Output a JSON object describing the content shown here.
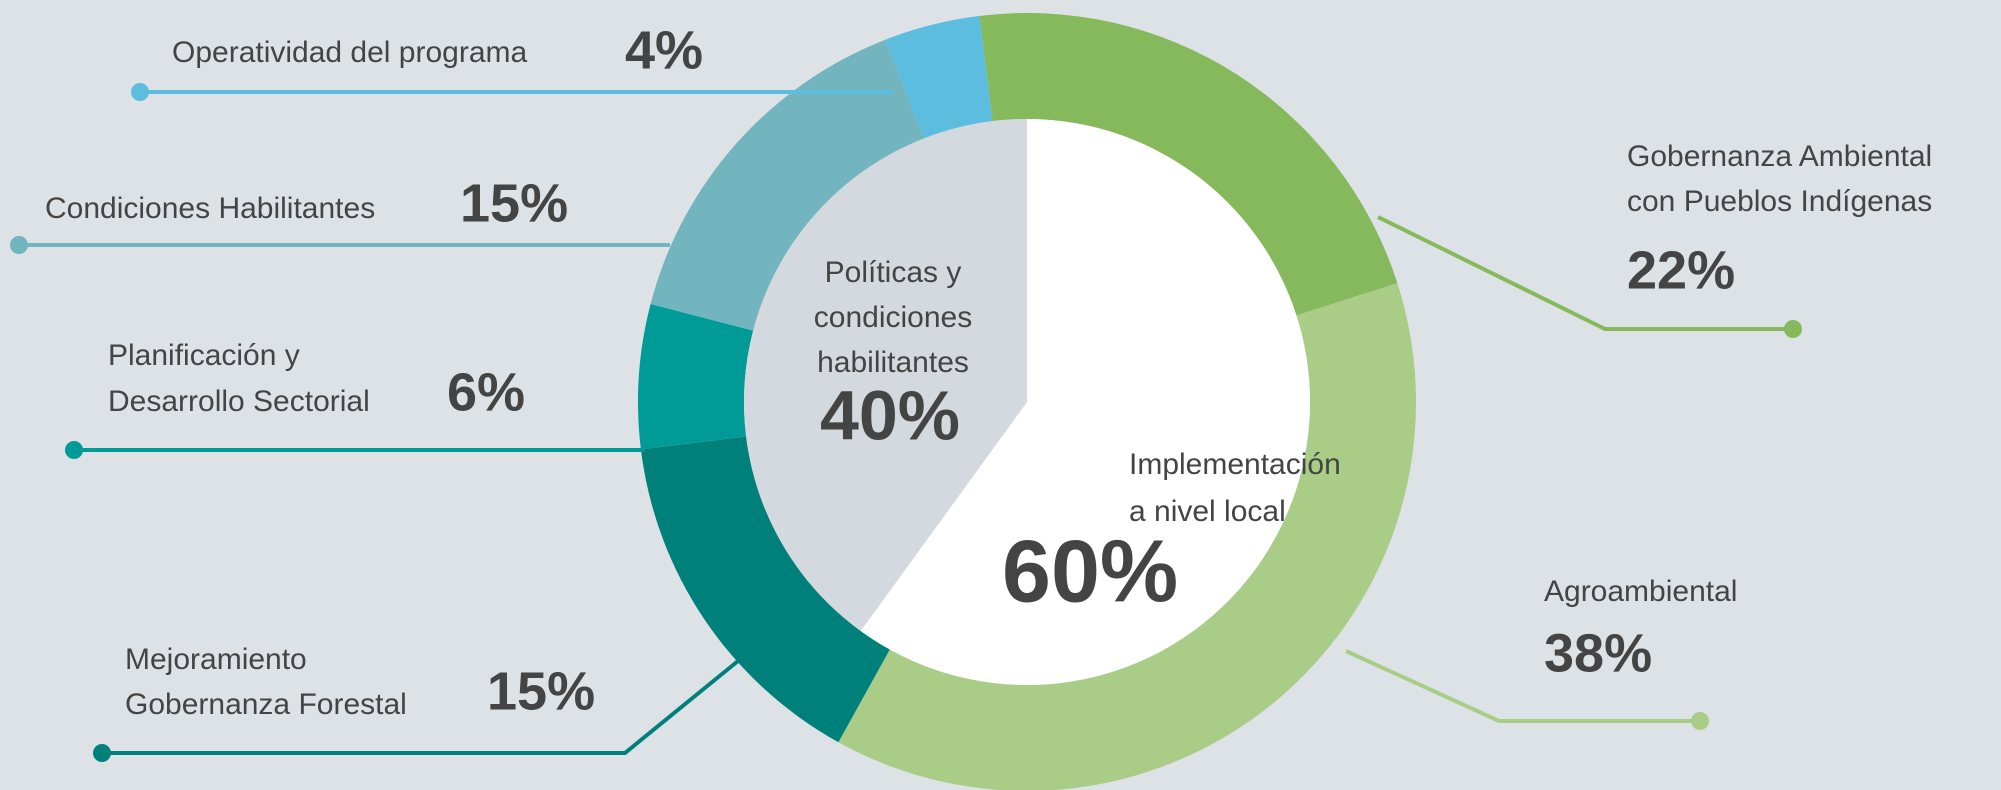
{
  "chart_data": {
    "type": "donut",
    "outer": {
      "categories": [
        [
          "Gobernanza Ambiental",
          "con Pueblos Indígenas"
        ],
        [
          "Agroambiental"
        ],
        [
          "Mejoramiento",
          "Gobernanza Forestal"
        ],
        [
          "Planificación y",
          "Desarrollo Sectorial"
        ],
        [
          "Condiciones Habilitantes"
        ],
        [
          "Operatividad del programa"
        ]
      ],
      "values": [
        22,
        38,
        15,
        6,
        15,
        4
      ],
      "value_labels": [
        "22%",
        "38%",
        "15%",
        "6%",
        "15%",
        "4%"
      ],
      "colors": [
        "#86b95b",
        "#a9cd87",
        "#00807a",
        "#009b96",
        "#72b5bf",
        "#5dbddf"
      ]
    },
    "inner": {
      "categories": [
        [
          "Implementación",
          "a nivel local"
        ],
        [
          "Políticas y",
          "condiciones",
          "habilitantes"
        ]
      ],
      "values": [
        60,
        40
      ],
      "value_labels": [
        "60%",
        "40%"
      ],
      "colors": [
        "#ffffff",
        "#d3d9de"
      ]
    }
  }
}
